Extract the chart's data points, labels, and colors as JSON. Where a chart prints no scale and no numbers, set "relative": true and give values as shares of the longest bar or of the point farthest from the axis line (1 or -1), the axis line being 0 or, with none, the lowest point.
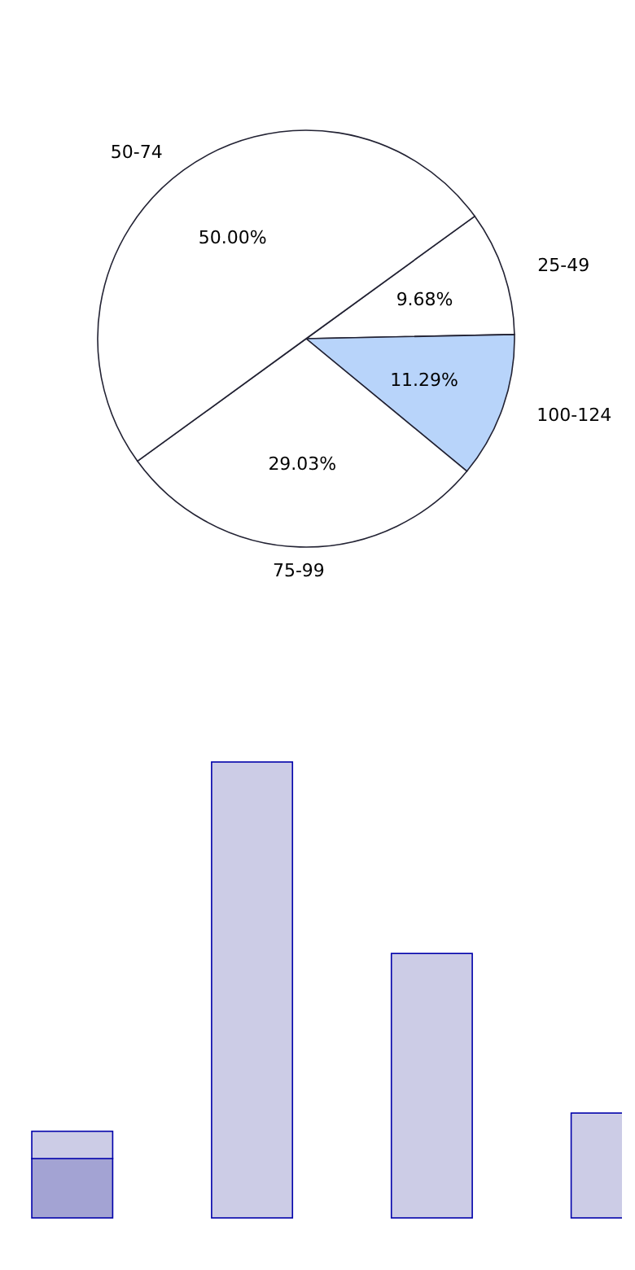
{
  "chart_data": [
    {
      "type": "pie",
      "categories": [
        "25-49",
        "100-124",
        "75-99",
        "50-74"
      ],
      "values": [
        9.68,
        11.29,
        29.03,
        50
      ],
      "value_labels": [
        "9.68%",
        "11.29%",
        "29.03%",
        "50.00%"
      ],
      "colors": [
        "#ffffff",
        "#b8d4fa",
        "#ffffff",
        "#ffffff"
      ]
    },
    {
      "type": "bar",
      "relative": true,
      "stacked": true,
      "categories": [
        null,
        null,
        null,
        null
      ],
      "series": [
        {
          "color": "#a3a3d3",
          "values": [
            0.13,
            null,
            null,
            null
          ]
        },
        {
          "color": "#ccccE6",
          "values": [
            0.06,
            1,
            0.58,
            0.23
          ]
        }
      ]
    }
  ]
}
